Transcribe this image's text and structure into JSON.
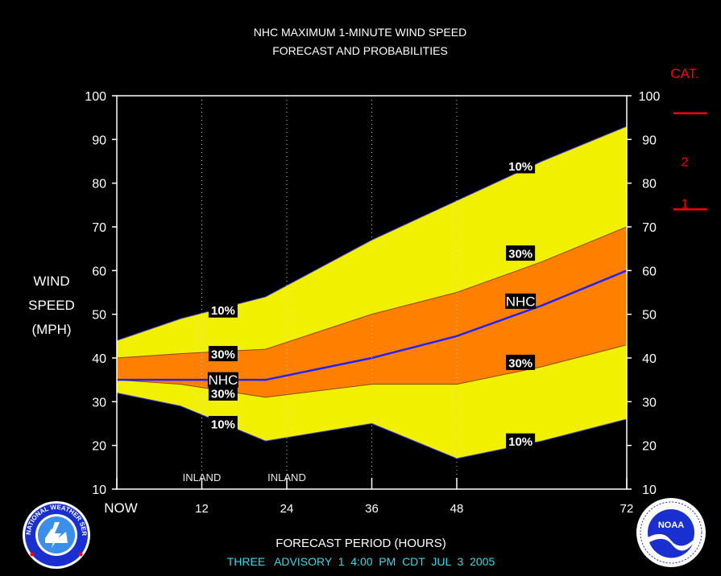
{
  "title_line1": "NHC MAXIMUM 1-MINUTE WIND SPEED",
  "title_line2": "FORECAST AND PROBABILITIES",
  "ylabel": [
    "WIND",
    "SPEED",
    "(MPH)"
  ],
  "xlabel": "FORECAST PERIOD (HOURS)",
  "advisory": "THREE   ADVISORY  1  4:00  PM  CDT  JUL  3  2005",
  "cat_header": "CAT.",
  "categories_scale": [
    {
      "label": "2",
      "threshold": 96
    },
    {
      "label": "1",
      "threshold": 74
    }
  ],
  "colors": {
    "band_10": "#f0f000",
    "band_30": "#ff8000",
    "nhc_line": "#2222ff",
    "frame": "#ffffff",
    "category": "#ff0000",
    "advisory_text": "#3fd6e6"
  },
  "logos": {
    "nws": "NATIONAL WEATHER SERVICE",
    "noaa": "NOAA"
  },
  "chart_data": {
    "type": "area",
    "xlim": [
      0,
      72
    ],
    "ylim": [
      10,
      100
    ],
    "yticks": [
      10,
      20,
      30,
      40,
      50,
      60,
      70,
      80,
      90,
      100
    ],
    "xticks": [
      {
        "value": 0,
        "label": "NOW"
      },
      {
        "value": 12,
        "label": "12"
      },
      {
        "value": 24,
        "label": "24"
      },
      {
        "value": 36,
        "label": "36"
      },
      {
        "value": 48,
        "label": "48"
      },
      {
        "value": 72,
        "label": "72"
      }
    ],
    "grid_x": [
      12,
      24,
      36,
      48
    ],
    "x": [
      0,
      9,
      21,
      36,
      48,
      60,
      72
    ],
    "series": [
      {
        "name": "10%",
        "role": "upper_10",
        "values": [
          44,
          49,
          54,
          67,
          76,
          85,
          93
        ]
      },
      {
        "name": "30%",
        "role": "upper_30",
        "values": [
          40,
          41,
          42,
          50,
          55,
          62,
          70
        ]
      },
      {
        "name": "NHC",
        "role": "forecast",
        "values": [
          35,
          35,
          35,
          40,
          45,
          52,
          60
        ]
      },
      {
        "name": "30%",
        "role": "lower_30",
        "values": [
          35,
          34,
          31,
          34,
          34,
          38,
          43
        ]
      },
      {
        "name": "10%",
        "role": "lower_10",
        "values": [
          32,
          29,
          21,
          25,
          17,
          21,
          26
        ]
      }
    ],
    "band_labels": [
      {
        "text": "10%",
        "x": 15,
        "y": 51
      },
      {
        "text": "30%",
        "x": 15,
        "y": 41
      },
      {
        "text": "NHC",
        "x": 15,
        "y": 35
      },
      {
        "text": "30%",
        "x": 15,
        "y": 32
      },
      {
        "text": "10%",
        "x": 15,
        "y": 25
      },
      {
        "text": "10%",
        "x": 57,
        "y": 84
      },
      {
        "text": "30%",
        "x": 57,
        "y": 64
      },
      {
        "text": "NHC",
        "x": 57,
        "y": 53
      },
      {
        "text": "30%",
        "x": 57,
        "y": 39
      },
      {
        "text": "10%",
        "x": 57,
        "y": 21
      }
    ],
    "annotations": [
      {
        "text": "INLAND",
        "x": 12
      },
      {
        "text": "INLAND",
        "x": 24
      }
    ]
  }
}
